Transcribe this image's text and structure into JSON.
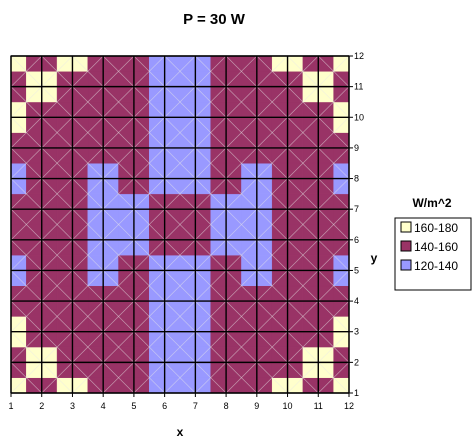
{
  "chart_data": {
    "type": "heatmap",
    "title": "P = 30 W",
    "xlabel": "x",
    "ylabel": "y",
    "x_ticks": [
      "1",
      "2",
      "3",
      "4",
      "5",
      "6",
      "7",
      "8",
      "9",
      "10",
      "11",
      "12"
    ],
    "y_ticks": [
      "1",
      "2",
      "3",
      "4",
      "5",
      "6",
      "7",
      "8",
      "9",
      "10",
      "11",
      "12"
    ],
    "xlim": [
      1,
      12
    ],
    "ylim": [
      1,
      12
    ],
    "grid": true,
    "legend": {
      "title": "W/m^2",
      "placement": "right",
      "entries": [
        {
          "label": "160-180",
          "color": "#FFFFCC"
        },
        {
          "label": "140-160",
          "color": "#993366"
        },
        {
          "label": "120-140",
          "color": "#9999FF"
        }
      ]
    },
    "z_bands": {
      "120-140": {
        "min": 120,
        "max": 140,
        "color": "#9999FF"
      },
      "140-160": {
        "min": 140,
        "max": 160,
        "color": "#993366"
      },
      "160-180": {
        "min": 160,
        "max": 180,
        "color": "#FFFFCC"
      }
    },
    "z": [
      [
        170,
        150,
        170,
        150,
        150,
        130,
        130,
        150,
        150,
        170,
        150,
        170
      ],
      [
        150,
        170,
        150,
        150,
        150,
        130,
        130,
        150,
        150,
        150,
        170,
        150
      ],
      [
        170,
        150,
        150,
        150,
        150,
        130,
        130,
        150,
        150,
        150,
        150,
        170
      ],
      [
        150,
        150,
        150,
        150,
        150,
        130,
        130,
        150,
        150,
        150,
        150,
        150
      ],
      [
        130,
        150,
        150,
        130,
        150,
        130,
        130,
        150,
        130,
        150,
        150,
        130
      ],
      [
        150,
        150,
        150,
        130,
        130,
        150,
        150,
        130,
        130,
        150,
        150,
        150
      ],
      [
        150,
        150,
        150,
        130,
        130,
        150,
        150,
        130,
        130,
        150,
        150,
        150
      ],
      [
        130,
        150,
        150,
        130,
        150,
        130,
        130,
        150,
        130,
        150,
        150,
        130
      ],
      [
        150,
        150,
        150,
        150,
        150,
        130,
        130,
        150,
        150,
        150,
        150,
        150
      ],
      [
        170,
        150,
        150,
        150,
        150,
        130,
        130,
        150,
        150,
        150,
        150,
        170
      ],
      [
        150,
        170,
        150,
        150,
        150,
        130,
        130,
        150,
        150,
        150,
        170,
        150
      ],
      [
        170,
        150,
        170,
        150,
        150,
        130,
        130,
        150,
        150,
        170,
        150,
        170
      ]
    ]
  }
}
